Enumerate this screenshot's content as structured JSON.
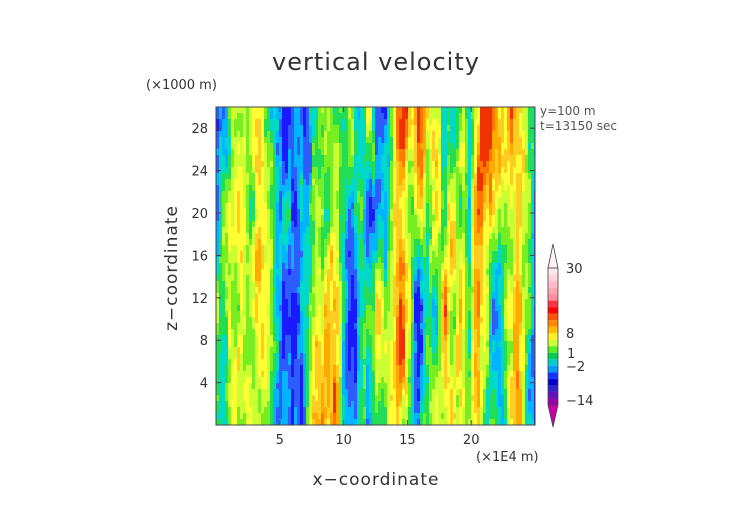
{
  "chart_data": {
    "type": "heatmap",
    "title": "vertical velocity",
    "xlabel": "x−coordinate",
    "ylabel": "z−coordinate",
    "x_unit": "(×1E4 m)",
    "y_unit": "(×1000 m)",
    "annotations": [
      "y=100 m",
      "t=13150 sec"
    ],
    "xlim": [
      0,
      25
    ],
    "ylim": [
      0,
      30
    ],
    "x_ticks": [
      5,
      10,
      15,
      20
    ],
    "y_ticks": [
      4,
      8,
      12,
      16,
      20,
      24,
      28
    ],
    "colorbar": {
      "tick_labels": [
        "30",
        "8",
        "1",
        "−2",
        "−14"
      ],
      "tick_values": [
        30,
        8,
        1,
        -2,
        -14
      ]
    }
  },
  "colors": {
    "background": "#ffffff",
    "text": "#333333",
    "axis": "#444444"
  }
}
